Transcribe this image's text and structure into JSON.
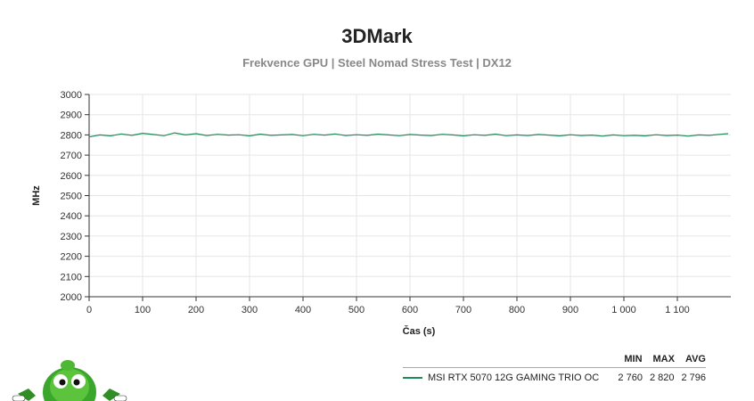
{
  "title": "3DMark",
  "subtitle": "Frekvence GPU | Steel Nomad Stress Test | DX12",
  "colors": {
    "series": "#1f8a5b",
    "grid": "#e6e6e6",
    "axis": "#333333"
  },
  "chart_data": {
    "type": "line",
    "xlabel": "Čas (s)",
    "ylabel": "MHz",
    "xlim": [
      0,
      1200
    ],
    "ylim": [
      2000,
      3000
    ],
    "x_ticks": [
      0,
      100,
      200,
      300,
      400,
      500,
      600,
      700,
      800,
      900,
      1000,
      1100
    ],
    "x_tick_labels": [
      "0",
      "100",
      "200",
      "300",
      "400",
      "500",
      "600",
      "700",
      "800",
      "900",
      "1 000",
      "1 100"
    ],
    "y_ticks": [
      2000,
      2100,
      2200,
      2300,
      2400,
      2500,
      2600,
      2700,
      2800,
      2900,
      3000
    ],
    "grid": true,
    "series": [
      {
        "name": "MSI RTX 5070 12G GAMING TRIO OC",
        "min": 2760,
        "max": 2820,
        "avg": 2796,
        "x": [
          0,
          20,
          40,
          60,
          80,
          100,
          120,
          140,
          160,
          180,
          200,
          220,
          240,
          260,
          280,
          300,
          320,
          340,
          360,
          380,
          400,
          420,
          440,
          460,
          480,
          500,
          520,
          540,
          560,
          580,
          600,
          620,
          640,
          660,
          680,
          700,
          720,
          740,
          760,
          780,
          800,
          820,
          840,
          860,
          880,
          900,
          920,
          940,
          960,
          980,
          1000,
          1020,
          1040,
          1060,
          1080,
          1100,
          1120,
          1140,
          1160,
          1180,
          1195
        ],
        "values": [
          2790,
          2800,
          2795,
          2805,
          2798,
          2808,
          2802,
          2796,
          2810,
          2800,
          2806,
          2797,
          2803,
          2799,
          2801,
          2795,
          2804,
          2798,
          2800,
          2802,
          2796,
          2803,
          2799,
          2805,
          2797,
          2801,
          2798,
          2804,
          2800,
          2796,
          2802,
          2799,
          2797,
          2803,
          2800,
          2795,
          2801,
          2798,
          2804,
          2796,
          2800,
          2797,
          2802,
          2799,
          2795,
          2801,
          2797,
          2799,
          2794,
          2800,
          2796,
          2798,
          2795,
          2801,
          2797,
          2799,
          2794,
          2800,
          2798,
          2803,
          2806
        ]
      }
    ]
  },
  "legend": {
    "headers": {
      "min": "MIN",
      "max": "MAX",
      "avg": "AVG"
    },
    "rows": [
      {
        "name": "MSI RTX 5070 12G GAMING TRIO OC",
        "min": "2 760",
        "max": "2 820",
        "avg": "2 796"
      }
    ]
  }
}
